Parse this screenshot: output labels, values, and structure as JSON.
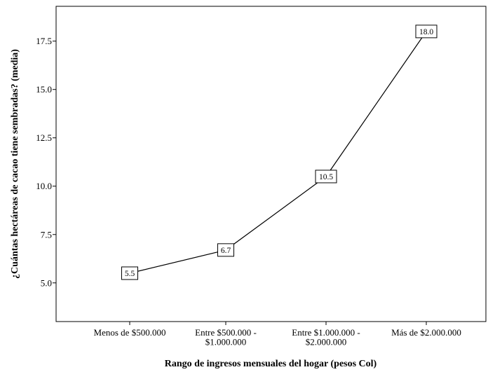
{
  "chart_data": {
    "type": "line",
    "xlabel": "Rango de ingresos mensuales del hogar (pesos Col)",
    "ylabel": "¿Cuántas hectáreas de cacao tiene sembradas? (media)",
    "categories": [
      [
        "Menos de $500.000"
      ],
      [
        "Entre $500.000 -",
        "$1.000.000"
      ],
      [
        "Entre $1.000.000 -",
        "$2.000.000"
      ],
      [
        "Más de $2.000.000"
      ]
    ],
    "values": [
      5.5,
      6.7,
      10.5,
      18.0
    ],
    "data_labels": [
      "5.5",
      "6.7",
      "10.5",
      "18.0"
    ],
    "ylim": [
      3.0,
      19.3
    ],
    "yticks": [
      5.0,
      7.5,
      10.0,
      12.5,
      15.0,
      17.5
    ],
    "ytick_labels": [
      "5.0",
      "7.5",
      "10.0",
      "12.5",
      "15.0",
      "17.5"
    ],
    "grid": false,
    "legend": false,
    "line_color": "#000000",
    "background": "#ffffff"
  }
}
